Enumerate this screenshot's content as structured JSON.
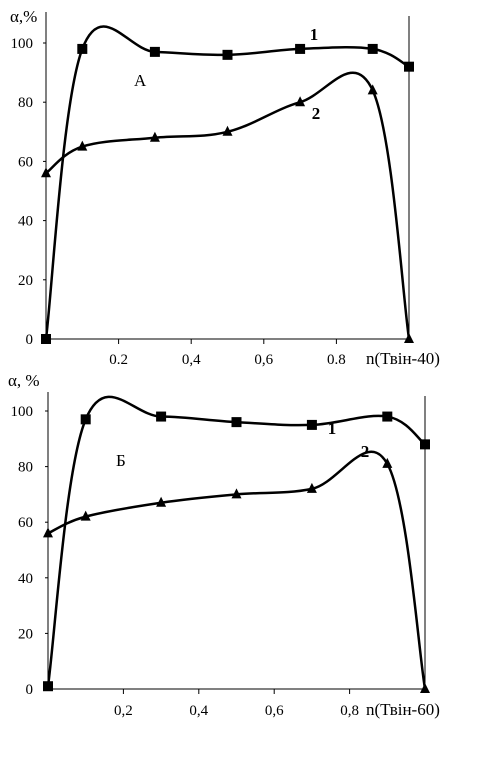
{
  "chart_data": [
    {
      "type": "line",
      "panel_label": "А",
      "ylabel": "α,%",
      "xlabel": "n(Твін-40)",
      "ylim": [
        0,
        100
      ],
      "xlim": [
        0,
        1.0
      ],
      "yticks": [
        "0",
        "20",
        "40",
        "60",
        "80",
        "100"
      ],
      "xticks": [
        "0.2",
        "0,4",
        "0,6",
        "0.8"
      ],
      "grid": false,
      "series": [
        {
          "name": "1",
          "marker": "square",
          "x": [
            0,
            0.1,
            0.3,
            0.5,
            0.7,
            0.9,
            1.0
          ],
          "y": [
            0,
            98,
            97,
            96,
            98,
            98,
            92
          ]
        },
        {
          "name": "2",
          "marker": "triangle",
          "x": [
            0,
            0.1,
            0.3,
            0.5,
            0.7,
            0.9,
            1.0
          ],
          "y": [
            56,
            65,
            68,
            70,
            80,
            84,
            0
          ]
        }
      ]
    },
    {
      "type": "line",
      "panel_label": "Б",
      "ylabel": "α, %",
      "xlabel": "n(Твін-60)",
      "ylim": [
        0,
        100
      ],
      "xlim": [
        0,
        1.0
      ],
      "yticks": [
        "0",
        "20",
        "40",
        "60",
        "80",
        "100"
      ],
      "xticks": [
        "0,2",
        "0,4",
        "0,6",
        "0,8"
      ],
      "grid": false,
      "series": [
        {
          "name": "1",
          "marker": "square",
          "x": [
            0,
            0.1,
            0.3,
            0.5,
            0.7,
            0.9,
            1.0
          ],
          "y": [
            1,
            97,
            98,
            96,
            95,
            98,
            88
          ]
        },
        {
          "name": "2",
          "marker": "triangle",
          "x": [
            0,
            0.1,
            0.3,
            0.5,
            0.7,
            0.9,
            1.0
          ],
          "y": [
            56,
            62,
            67,
            70,
            72,
            81,
            0
          ]
        }
      ]
    }
  ]
}
